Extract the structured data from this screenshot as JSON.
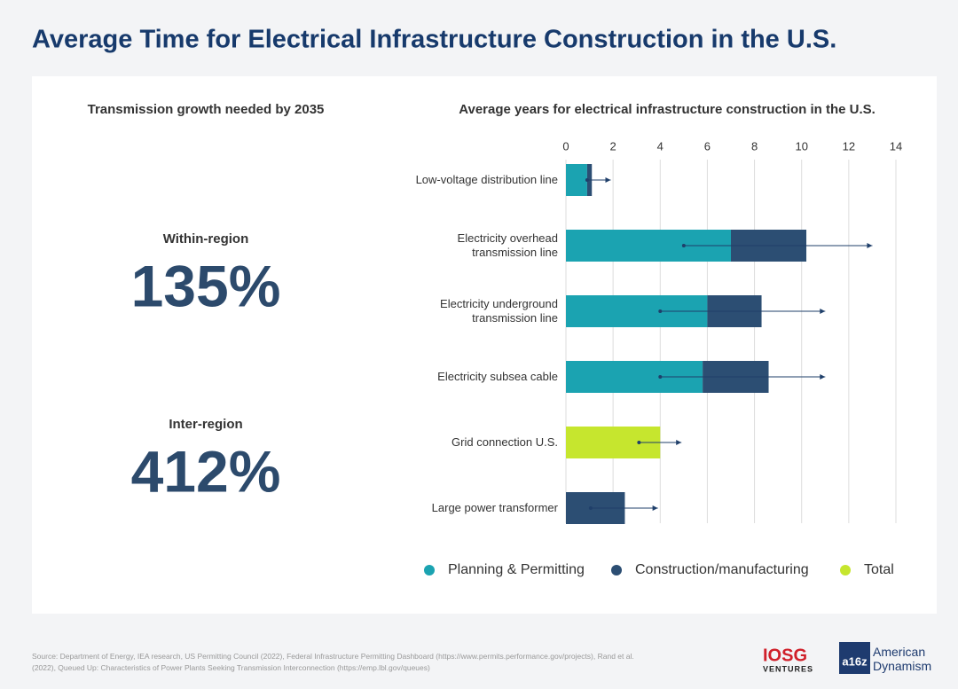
{
  "title": "Average Time for Electrical Infrastructure Construction in the U.S.",
  "left_panel": {
    "heading": "Transmission growth needed by 2035",
    "stats": [
      {
        "label": "Within-region",
        "value": "135%"
      },
      {
        "label": "Inter-region",
        "value": "412%"
      }
    ]
  },
  "chart_data": {
    "type": "bar",
    "orientation": "horizontal",
    "stacked": true,
    "title": "Average years for electrical infrastructure construction in the U.S.",
    "categories": [
      "Low-voltage distribution line",
      "Electricity overhead transmission line",
      "Electricity underground transmission line",
      "Electricity subsea cable",
      "Grid connection U.S.",
      "Large power transformer"
    ],
    "series": [
      {
        "name": "Planning & Permitting",
        "color": "#1ba3b1",
        "values": [
          0.9,
          7,
          6,
          5.8,
          null,
          null
        ]
      },
      {
        "name": "Construction/manufacturing",
        "color": "#2c4e73",
        "values": [
          0.2,
          3.2,
          2.3,
          2.8,
          null,
          2.5
        ]
      },
      {
        "name": "Total",
        "color": "#c6e62e",
        "values": [
          null,
          null,
          null,
          null,
          4,
          null
        ]
      }
    ],
    "error_low": [
      0.9,
      5,
      4,
      4,
      3.1,
      1.05
    ],
    "error_high": [
      1.9,
      13,
      11,
      11,
      4.9,
      3.9
    ],
    "error_color": "#1f3f6a",
    "xlim": [
      0,
      14
    ],
    "xticks": [
      0,
      2,
      4,
      6,
      8,
      10,
      12,
      14
    ],
    "grid": true
  },
  "footer": {
    "source": "Source: Department of Energy, IEA research, US Permitting Council (2022), Federal Infrastructure Permitting Dashboard (https://www.permits.performance.gov/projects), Rand et al. (2022), Queued Up: Characteristics of Power Plants Seeking Transmission Interconnection (https://emp.lbl.gov/queues)",
    "logo1": "IOSG",
    "logo1_sub": "VENTURES",
    "logo2": "a16z",
    "logo2_text": "American Dynamism"
  }
}
